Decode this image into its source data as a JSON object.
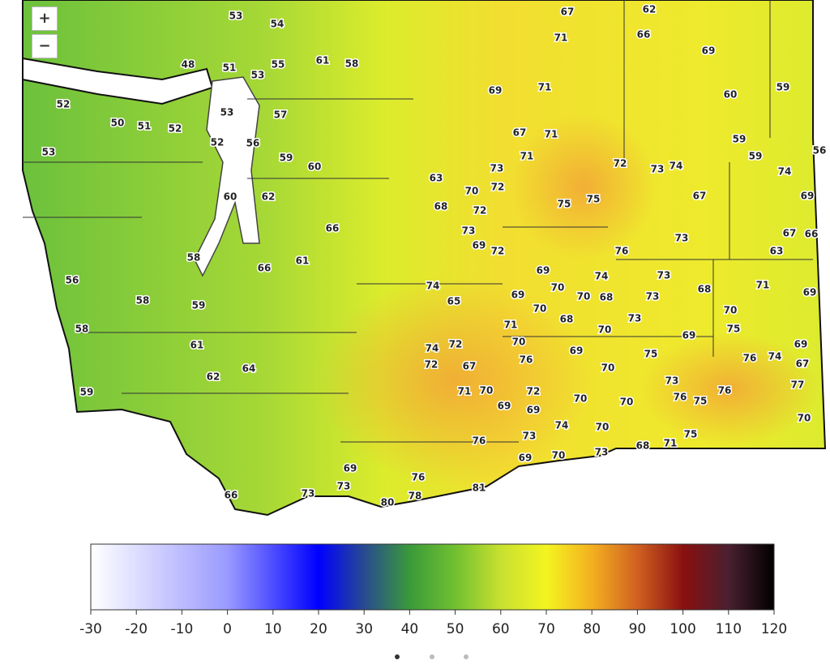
{
  "zoom_controls": {
    "zoom_in": "+",
    "zoom_out": "−"
  },
  "station_temps": [
    53,
    54,
    67,
    62,
    48,
    51,
    53,
    55,
    61,
    58,
    71,
    66,
    69,
    59,
    60,
    52,
    50,
    51,
    52,
    53,
    57,
    69,
    71,
    53,
    52,
    56,
    59,
    60,
    67,
    71,
    71,
    59,
    59,
    56,
    73,
    72,
    73,
    74,
    74,
    63,
    70,
    72,
    60,
    62,
    67,
    69,
    68,
    72,
    75,
    75,
    66,
    73,
    69,
    72,
    76,
    73,
    67,
    66,
    63,
    58,
    61,
    66,
    56,
    69,
    74,
    73,
    74,
    70,
    68,
    71,
    69,
    58,
    59,
    65,
    69,
    70,
    68,
    73,
    58,
    70,
    68,
    73,
    70,
    71,
    70,
    75,
    69,
    61,
    74,
    72,
    70,
    76,
    69,
    75,
    69,
    76,
    74,
    67,
    72,
    67,
    64,
    70,
    62,
    73,
    77,
    59,
    71,
    70,
    72,
    76,
    76,
    75,
    69,
    69,
    70,
    70,
    70,
    74,
    70,
    76,
    73,
    75,
    71,
    68,
    69,
    70,
    73,
    69,
    76,
    81,
    73,
    73,
    66,
    78,
    80
  ],
  "colorbar": {
    "range": [
      -30,
      120
    ],
    "ticks": [
      -30,
      -20,
      -10,
      0,
      10,
      20,
      30,
      40,
      50,
      60,
      70,
      80,
      90,
      100,
      110,
      120
    ]
  }
}
